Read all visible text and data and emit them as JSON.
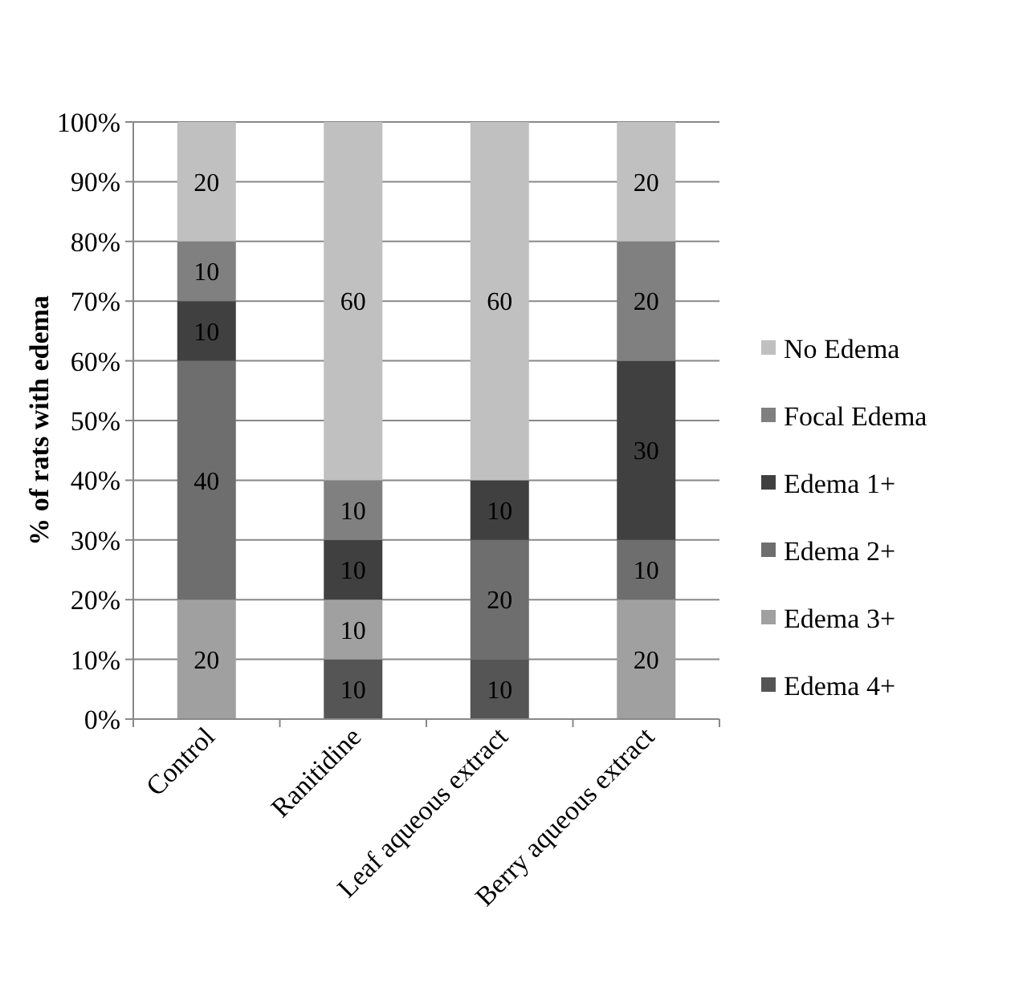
{
  "chart_data": {
    "type": "bar",
    "stacked": true,
    "ylabel": "% of rats with edema",
    "categories": [
      "Control",
      "Ranitidine",
      "Leaf aqueous extract",
      "Berry aqueous extract"
    ],
    "ylim": [
      0,
      100
    ],
    "yticks": [
      {
        "value": 0,
        "label": "0%"
      },
      {
        "value": 10,
        "label": "10%"
      },
      {
        "value": 20,
        "label": "20%"
      },
      {
        "value": 30,
        "label": "30%"
      },
      {
        "value": 40,
        "label": "40%"
      },
      {
        "value": 50,
        "label": "50%"
      },
      {
        "value": 60,
        "label": "60%"
      },
      {
        "value": 70,
        "label": "70%"
      },
      {
        "value": 80,
        "label": "80%"
      },
      {
        "value": 90,
        "label": "90%"
      },
      {
        "value": 100,
        "label": "100%"
      }
    ],
    "grid": "y",
    "legend": "right",
    "data_labels": true,
    "series": [
      {
        "name": "Edema 4+",
        "color": "#555555",
        "values": [
          null,
          10,
          10,
          null
        ]
      },
      {
        "name": "Edema 3+",
        "color": "#a0a0a0",
        "values": [
          20,
          10,
          null,
          20
        ]
      },
      {
        "name": "Edema 2+",
        "color": "#6e6e6e",
        "values": [
          40,
          null,
          20,
          10
        ]
      },
      {
        "name": "Edema 1+",
        "color": "#404040",
        "values": [
          10,
          10,
          10,
          30
        ]
      },
      {
        "name": "Focal Edema",
        "color": "#808080",
        "values": [
          10,
          10,
          null,
          20
        ]
      },
      {
        "name": "No Edema",
        "color": "#c0c0c0",
        "values": [
          20,
          60,
          60,
          20
        ]
      }
    ]
  }
}
